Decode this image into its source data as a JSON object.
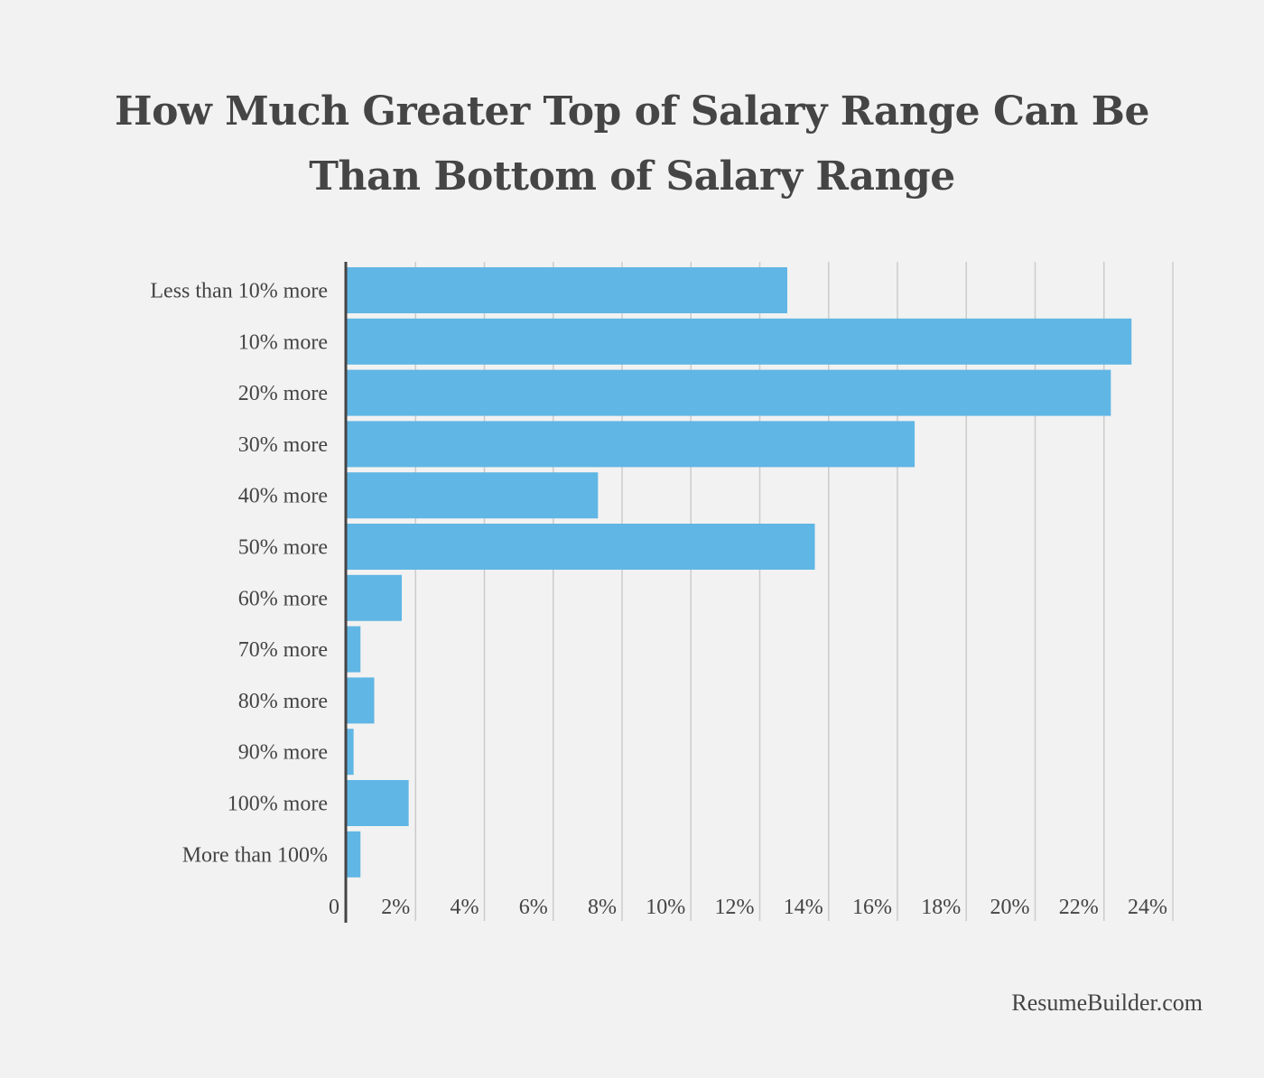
{
  "chart_data": {
    "type": "bar",
    "orientation": "horizontal",
    "title_lines": [
      "How Much Greater Top of Salary Range Can Be",
      "Than Bottom of Salary Range"
    ],
    "categories": [
      "Less than 10% more",
      "10% more",
      "20% more",
      "30% more",
      "40% more",
      "50% more",
      "60% more",
      "70% more",
      "80% more",
      "90% more",
      "100% more",
      "More than 100%"
    ],
    "values": [
      12.8,
      22.8,
      22.2,
      16.5,
      7.3,
      13.6,
      1.6,
      0.4,
      0.8,
      0.2,
      1.8,
      0.4
    ],
    "unit": "%",
    "xlim": [
      0,
      24
    ],
    "xticks": [
      "0",
      "2%",
      "4%",
      "6%",
      "8%",
      "10%",
      "12%",
      "14%",
      "16%",
      "18%",
      "20%",
      "22%",
      "24%"
    ],
    "grid": "vertical",
    "bar_color": "#60b6e4",
    "grid_color": "#cccccc",
    "axis_color": "#444444",
    "background": "#f2f2f2"
  },
  "source": "ResumeBuilder.com"
}
